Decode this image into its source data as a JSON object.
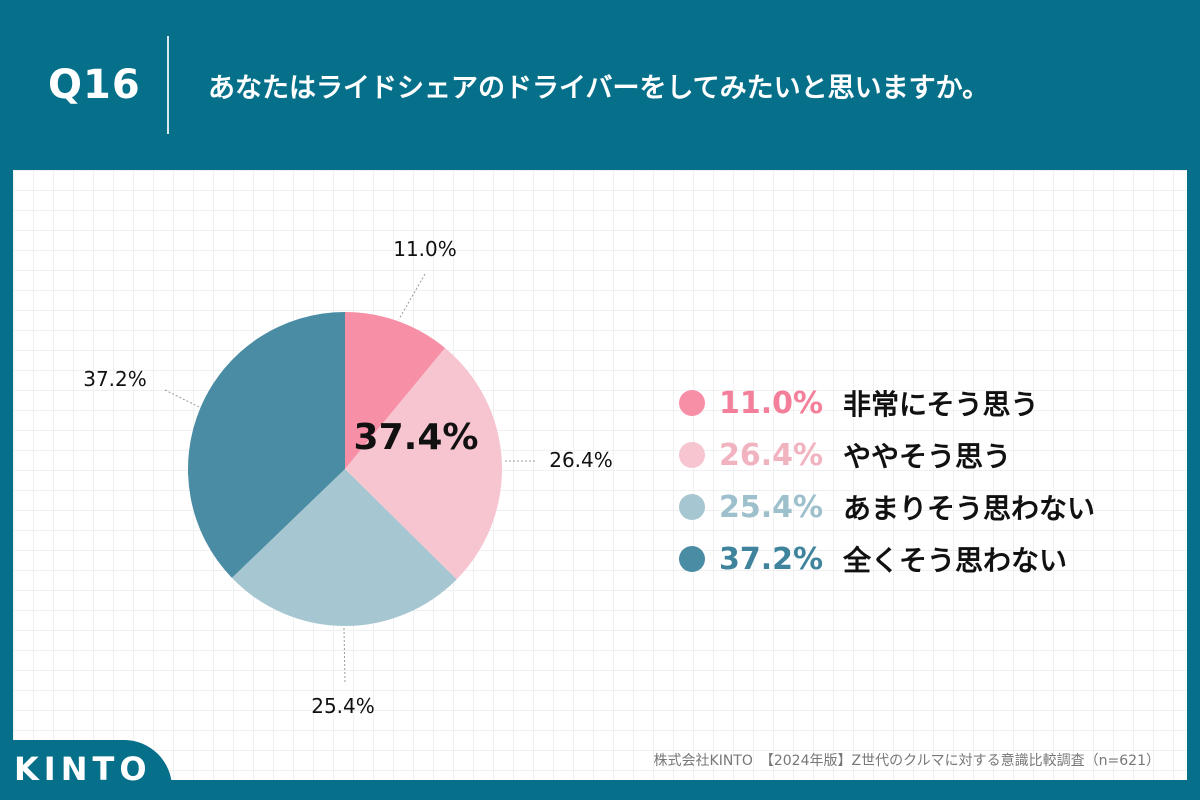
{
  "header": {
    "question_number": "Q16",
    "question_text": "あなたはライドシェアのドライバーをしてみたいと思いますか。"
  },
  "chart_data": {
    "type": "pie",
    "title": "",
    "center_label": "37.4%",
    "slices": [
      {
        "label": "非常にそう思う",
        "value": 11.0,
        "value_label": "11.0%",
        "color": "#f78fa7",
        "text_color": "#f47f9a"
      },
      {
        "label": "ややそう思う",
        "value": 26.4,
        "value_label": "26.4%",
        "color": "#f6c5d0",
        "text_color": "#f2b3c0"
      },
      {
        "label": "あまりそう思わない",
        "value": 25.4,
        "value_label": "25.4%",
        "color": "#a6c7d2",
        "text_color": "#9ec0cc"
      },
      {
        "label": "全くそう思わない",
        "value": 37.2,
        "value_label": "37.2%",
        "color": "#4a8ca3",
        "text_color": "#3f849c"
      }
    ]
  },
  "brand": {
    "logo_text": "KINTO"
  },
  "footer": {
    "source": "株式会社KINTO　【2024年版】Z世代のクルマに対する意識比較調査（n=621）"
  }
}
